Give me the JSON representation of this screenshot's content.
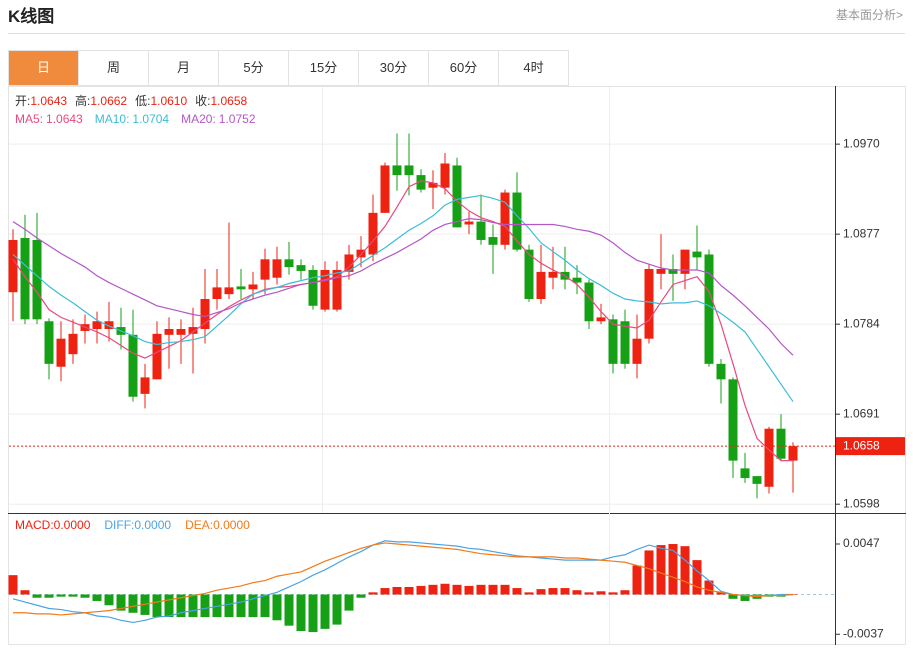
{
  "header": {
    "title": "K线图",
    "link": "基本面分析>"
  },
  "tabs": [
    "日",
    "周",
    "月",
    "5分",
    "15分",
    "30分",
    "60分",
    "4时"
  ],
  "active_tab": 0,
  "chart_data": [
    {
      "type": "candlestick",
      "up_color": "#ee2211",
      "down_color": "#16a016",
      "ohlc_names": [
        "开:",
        "高:",
        "低:",
        "收:"
      ],
      "legend_labels": [
        "1.0643",
        "1.0662",
        "1.0610",
        "1.0658"
      ],
      "open": [
        1.0817,
        1.0873,
        1.0871,
        1.0787,
        1.074,
        1.0753,
        1.0777,
        1.0779,
        1.0779,
        1.0781,
        1.0773,
        1.0712,
        1.0727,
        1.0773,
        1.0773,
        1.0774,
        1.0779,
        1.081,
        1.0815,
        1.0823,
        1.082,
        1.083,
        1.0832,
        1.0851,
        1.0845,
        1.084,
        1.0799,
        1.0799,
        1.0838,
        1.0853,
        1.0856,
        1.0899,
        1.0948,
        1.0948,
        1.0938,
        1.0925,
        1.0925,
        1.0948,
        1.0887,
        1.089,
        1.0874,
        1.0866,
        1.092,
        1.0861,
        1.081,
        1.0832,
        1.0838,
        1.0832,
        1.0827,
        1.0787,
        1.0789,
        1.0787,
        1.0743,
        1.0769,
        1.0836,
        1.0841,
        1.0836,
        1.0859,
        1.0856,
        1.0743,
        1.0727,
        1.0635,
        1.0627,
        1.0616,
        1.0676,
        1.0643
      ],
      "high": [
        1.0882,
        1.0897,
        1.0899,
        1.079,
        1.0787,
        1.0789,
        1.0794,
        1.0797,
        1.0807,
        1.0801,
        1.0799,
        1.0743,
        1.0787,
        1.0791,
        1.0789,
        1.0801,
        1.0841,
        1.0841,
        1.0889,
        1.0841,
        1.0838,
        1.0862,
        1.0864,
        1.0869,
        1.0851,
        1.0845,
        1.0849,
        1.0849,
        1.0866,
        1.0875,
        1.0918,
        1.0951,
        1.0981,
        1.0981,
        1.0944,
        1.0943,
        1.0961,
        1.0956,
        1.09,
        1.0918,
        1.0887,
        1.0923,
        1.0941,
        1.0866,
        1.0866,
        1.0864,
        1.0864,
        1.0845,
        1.083,
        1.0805,
        1.0794,
        1.0799,
        1.0794,
        1.0846,
        1.0877,
        1.0856,
        1.0861,
        1.0886,
        1.0861,
        1.0748,
        1.0729,
        1.0651,
        1.0627,
        1.0678,
        1.0691,
        1.0662
      ],
      "low": [
        1.0787,
        1.0784,
        1.0784,
        1.0727,
        1.0725,
        1.0743,
        1.0764,
        1.0764,
        1.0766,
        1.0758,
        1.0704,
        1.0697,
        1.0727,
        1.0738,
        1.0743,
        1.0733,
        1.0764,
        1.0799,
        1.081,
        1.081,
        1.081,
        1.0815,
        1.0825,
        1.0835,
        1.083,
        1.0799,
        1.0797,
        1.0797,
        1.083,
        1.0843,
        1.0849,
        1.0899,
        1.0922,
        1.0917,
        1.092,
        1.0903,
        1.0918,
        1.0884,
        1.0877,
        1.0866,
        1.0836,
        1.0861,
        1.0859,
        1.0807,
        1.0805,
        1.082,
        1.082,
        1.0815,
        1.0779,
        1.0784,
        1.0733,
        1.0738,
        1.0728,
        1.0764,
        1.082,
        1.0808,
        1.082,
        1.084,
        1.074,
        1.0702,
        1.0625,
        1.062,
        1.0604,
        1.0609,
        1.0643,
        1.061
      ],
      "close": [
        1.0871,
        1.0789,
        1.0789,
        1.0743,
        1.0769,
        1.0774,
        1.0784,
        1.0787,
        1.0787,
        1.0773,
        1.0709,
        1.0729,
        1.0774,
        1.0779,
        1.0779,
        1.0781,
        1.081,
        1.0822,
        1.0822,
        1.082,
        1.0825,
        1.0851,
        1.0851,
        1.0843,
        1.0839,
        1.0803,
        1.084,
        1.084,
        1.0856,
        1.0861,
        1.0899,
        1.0948,
        1.0938,
        1.0938,
        1.0923,
        1.093,
        1.095,
        1.0884,
        1.089,
        1.0871,
        1.0866,
        1.092,
        1.0861,
        1.081,
        1.0838,
        1.0838,
        1.083,
        1.0827,
        1.0787,
        1.0791,
        1.0743,
        1.0743,
        1.0769,
        1.0841,
        1.0841,
        1.0836,
        1.0861,
        1.0853,
        1.0743,
        1.0727,
        1.0643,
        1.0625,
        1.0619,
        1.0676,
        1.0645,
        1.0658
      ],
      "overlays": [
        {
          "name": "MA5:",
          "color": "#e84a7f",
          "values": [
            1.0851,
            1.0833,
            1.0817,
            1.0799,
            1.0791,
            1.0786,
            1.0781,
            1.0776,
            1.077,
            1.0762,
            1.0754,
            1.0749,
            1.0755,
            1.0761,
            1.0767,
            1.0776,
            1.0785,
            1.0794,
            1.0802,
            1.0809,
            1.0815,
            1.082,
            1.0822,
            1.0823,
            1.0825,
            1.0827,
            1.083,
            1.0833,
            1.0843,
            1.0856,
            1.087,
            1.0885,
            1.0905,
            1.0926,
            1.0932,
            1.093,
            1.0924,
            1.0911,
            1.0901,
            1.0894,
            1.089,
            1.0885,
            1.087,
            1.0856,
            1.0847,
            1.084,
            1.0834,
            1.0825,
            1.0812,
            1.0797,
            1.0784,
            1.0782,
            1.078,
            1.0788,
            1.0807,
            1.0825,
            1.0829,
            1.0833,
            1.0818,
            1.0784,
            1.0743,
            1.07,
            1.0666,
            1.0654,
            1.0643,
            1.0643
          ]
        },
        {
          "name": "MA10:",
          "color": "#3cbdd6",
          "values": [
            1.0856,
            1.0845,
            1.0834,
            1.0823,
            1.0814,
            1.0806,
            1.0797,
            1.0788,
            1.0782,
            1.0777,
            1.0772,
            1.0766,
            1.0763,
            1.0765,
            1.0766,
            1.0768,
            1.0771,
            1.0782,
            1.0793,
            1.0805,
            1.0815,
            1.0819,
            1.0822,
            1.0826,
            1.0829,
            1.0832,
            1.0834,
            1.0837,
            1.0839,
            1.0847,
            1.0855,
            1.0863,
            1.0872,
            1.0881,
            1.0888,
            1.0896,
            1.0907,
            1.0913,
            1.0915,
            1.0917,
            1.0914,
            1.091,
            1.0896,
            1.0883,
            1.0868,
            1.0859,
            1.085,
            1.084,
            1.0831,
            1.0824,
            1.0816,
            1.081,
            1.0808,
            1.0807,
            1.0805,
            1.0806,
            1.0806,
            1.0808,
            1.0803,
            1.0795,
            1.0786,
            1.0776,
            1.0758,
            1.074,
            1.0722,
            1.0704
          ]
        },
        {
          "name": "MA20:",
          "color": "#b456c8",
          "values": [
            1.089,
            1.0882,
            1.0873,
            1.0865,
            1.0857,
            1.085,
            1.0843,
            1.0834,
            1.0827,
            1.0821,
            1.0815,
            1.0809,
            1.0803,
            1.08,
            1.0797,
            1.0794,
            1.0792,
            1.0796,
            1.08,
            1.0806,
            1.081,
            1.0814,
            1.0817,
            1.0821,
            1.0825,
            1.0827,
            1.0829,
            1.0832,
            1.0834,
            1.0839,
            1.0846,
            1.0852,
            1.0858,
            1.0865,
            1.0872,
            1.0881,
            1.0887,
            1.089,
            1.0893,
            1.0892,
            1.0889,
            1.0887,
            1.0887,
            1.0887,
            1.0887,
            1.0887,
            1.0885,
            1.0882,
            1.088,
            1.0876,
            1.0868,
            1.0858,
            1.085,
            1.0846,
            1.0842,
            1.084,
            1.084,
            1.084,
            1.0837,
            1.0824,
            1.0814,
            1.0803,
            1.0791,
            1.0779,
            1.0764,
            1.0752
          ]
        }
      ],
      "ylim": [
        1.0592,
        1.1028
      ],
      "yticks": [
        {
          "value": 1.097,
          "label": "1.0970"
        },
        1.0877,
        1.0784,
        1.0691,
        1.0598
      ],
      "grid": true,
      "last_price_line": true
    },
    {
      "type": "macd",
      "up_color": "#ee2211",
      "down_color": "#16a016",
      "series": [
        {
          "name": "MACD:",
          "color": "#ee2211",
          "style": "bar",
          "legend_label": "0.0000",
          "values": [
            0.0018,
            0.0004,
            -0.0003,
            -0.0003,
            -0.0002,
            -0.0002,
            -0.0003,
            -0.0006,
            -0.001,
            -0.0015,
            -0.0017,
            -0.0019,
            -0.0021,
            -0.0021,
            -0.0021,
            -0.0021,
            -0.0021,
            -0.0021,
            -0.0021,
            -0.0021,
            -0.0021,
            -0.0021,
            -0.0024,
            -0.0029,
            -0.0034,
            -0.0035,
            -0.0032,
            -0.0028,
            -0.0015,
            -0.0003,
            0.0002,
            0.0006,
            0.0007,
            0.0007,
            0.0008,
            0.0009,
            0.001,
            0.0009,
            0.0008,
            0.0009,
            0.0009,
            0.0009,
            0.0006,
            0.0002,
            0.0005,
            0.0006,
            0.0006,
            0.0004,
            0.0002,
            0.0003,
            0.0002,
            0.0004,
            0.0027,
            0.0041,
            0.0046,
            0.0047,
            0.0045,
            0.0032,
            0.0013,
            0.0002,
            -0.0004,
            -0.0006,
            -0.0004,
            -0.0002,
            -0.0002,
            0
          ]
        },
        {
          "name": "DIFF:",
          "color": "#4ba3e3",
          "style": "line",
          "legend_label": "0.0000",
          "values": [
            -0.0004,
            -0.0007,
            -0.001,
            -0.0013,
            -0.0014,
            -0.0016,
            -0.0017,
            -0.002,
            -0.0021,
            -0.0024,
            -0.0026,
            -0.0024,
            -0.0021,
            -0.002,
            -0.0017,
            -0.0015,
            -0.0013,
            -0.0011,
            -0.0009,
            -0.0007,
            -0.0004,
            -0.0001,
            0.0002,
            0.0007,
            0.0012,
            0.0018,
            0.0023,
            0.0029,
            0.0035,
            0.004,
            0.0046,
            0.005,
            0.0049,
            0.0049,
            0.0048,
            0.0047,
            0.0046,
            0.0045,
            0.0043,
            0.0042,
            0.004,
            0.0038,
            0.0036,
            0.0035,
            0.0034,
            0.0033,
            0.0032,
            0.0032,
            0.0032,
            0.0032,
            0.0035,
            0.0037,
            0.0042,
            0.0046,
            0.0043,
            0.0041,
            0.0032,
            0.0022,
            0.0013,
            0.0003,
            0,
            -0.0001,
            -0.0001,
            -0.0001,
            0,
            0
          ]
        },
        {
          "name": "DEA:",
          "color": "#f07a1a",
          "style": "line",
          "legend_label": "0.0000",
          "values": [
            -0.0017,
            -0.0017,
            -0.0018,
            -0.0018,
            -0.0019,
            -0.0018,
            -0.0017,
            -0.0016,
            -0.0015,
            -0.0013,
            -0.0011,
            -0.0009,
            -0.0007,
            -0.0005,
            -0.0003,
            -0.0001,
            0.0001,
            0.0004,
            0.0006,
            0.0008,
            0.0011,
            0.0013,
            0.0017,
            0.0019,
            0.0021,
            0.0026,
            0.0031,
            0.0035,
            0.0039,
            0.0043,
            0.0046,
            0.0048,
            0.0047,
            0.0046,
            0.0045,
            0.0044,
            0.0043,
            0.0042,
            0.004,
            0.0038,
            0.0037,
            0.0036,
            0.0035,
            0.0035,
            0.0035,
            0.0035,
            0.0034,
            0.0034,
            0.0033,
            0.0032,
            0.0031,
            0.003,
            0.0027,
            0.0024,
            0.002,
            0.0016,
            0.0012,
            0.0007,
            0.0004,
            0.0002,
            0,
            -0.0001,
            -0.0002,
            -0.0001,
            -0.0001,
            0
          ]
        }
      ],
      "ylim": [
        -0.0047,
        0.0074
      ],
      "yticks": [
        0.0047,
        -0.0037
      ]
    }
  ]
}
